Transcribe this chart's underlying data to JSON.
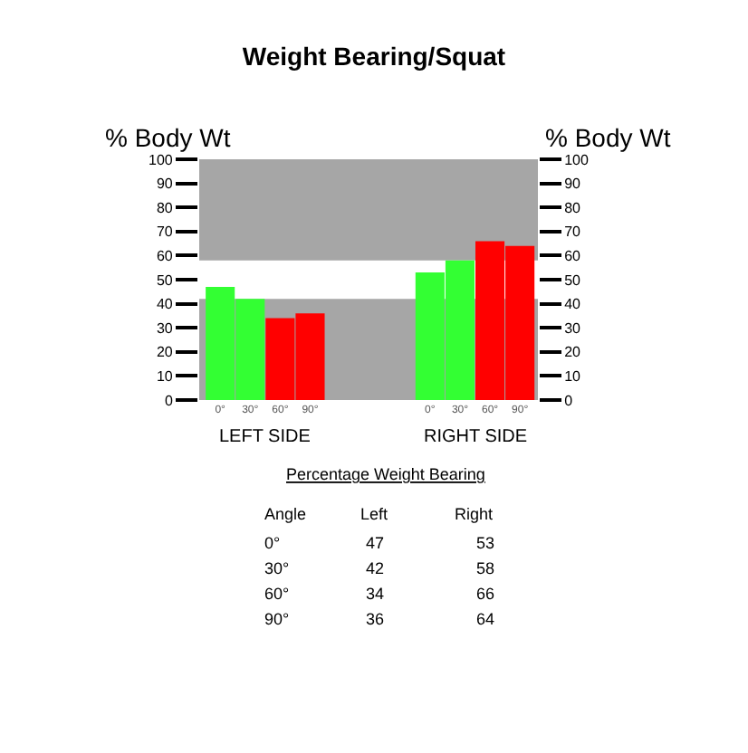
{
  "chart_data": {
    "type": "bar",
    "title": "Weight Bearing/Squat",
    "ylabel": "% Body Wt",
    "y2label": "% Body Wt",
    "categories": [
      "0°",
      "30°",
      "60°",
      "90°",
      null,
      null,
      null,
      "0°",
      "30°",
      "60°",
      "90°"
    ],
    "values": [
      47,
      42,
      34,
      36,
      null,
      null,
      null,
      53,
      58,
      66,
      64
    ],
    "colors": [
      "#33ff33",
      "#33ff33",
      "#ff0000",
      "#ff0000",
      null,
      null,
      null,
      "#33ff33",
      "#33ff33",
      "#ff0000",
      "#ff0000"
    ],
    "ylim": [
      0,
      100
    ],
    "yticks": [
      0,
      10,
      20,
      30,
      40,
      50,
      60,
      70,
      80,
      90,
      100
    ],
    "y2lim": [
      0,
      100
    ],
    "y2ticks": [
      0,
      10,
      20,
      30,
      40,
      50,
      60,
      70,
      80,
      90,
      100
    ],
    "bands": [
      {
        "axis": "y",
        "from": 0,
        "to": 42,
        "color": "#a6a6a6"
      },
      {
        "axis": "y",
        "from": 58,
        "to": 100,
        "color": "#a6a6a6"
      }
    ],
    "annotations": [
      "LEFT SIDE",
      "RIGHT SIDE",
      "Percentage Weight Bearing",
      "Angle",
      "Left",
      "Right",
      "0°",
      "47",
      "53",
      "30°",
      "42",
      "58",
      "60°",
      "34",
      "66",
      "90°",
      "36",
      "64"
    ],
    "grid": false,
    "legend": false
  }
}
